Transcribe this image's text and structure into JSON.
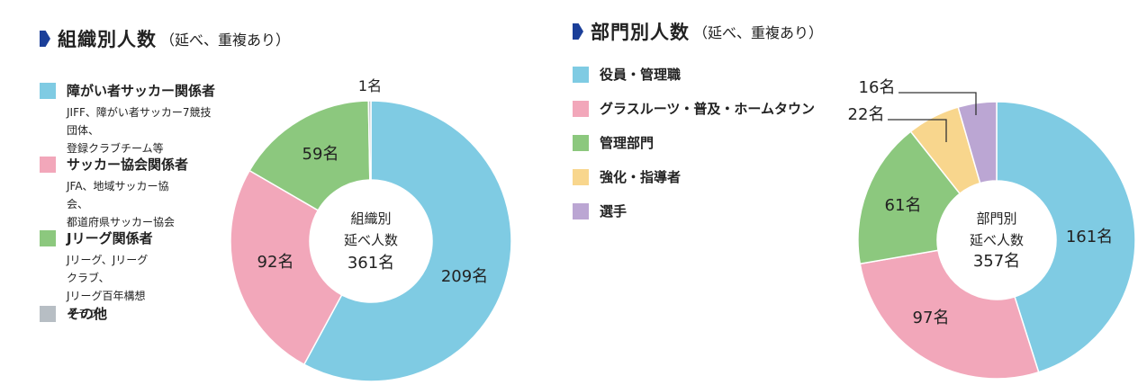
{
  "left": {
    "title": "組織別人数",
    "subtitle": "（延べ、重複あり）",
    "legend": [
      {
        "label": "障がい者サッカー関係者",
        "desc": "JIFF、障がい者サッカー7競技団体、\n登録クラブチーム等",
        "color": "#7fcbe3"
      },
      {
        "label": "サッカー協会関係者",
        "desc": "JFA、地域サッカー協会、\n都道府県サッカー協会",
        "color": "#f2a7ba"
      },
      {
        "label": "Jリーグ関係者",
        "desc": "Jリーグ、Jリーグクラブ、\nJリーグ百年構想クラブ",
        "color": "#8cc87e"
      },
      {
        "label": "その他",
        "desc": "",
        "color": "#b7bec4"
      }
    ]
  },
  "right": {
    "title": "部門別人数",
    "subtitle": "（延べ、重複あり）",
    "legend": [
      {
        "label": "役員・管理職",
        "color": "#7fcbe3"
      },
      {
        "label": "グラスルーツ・普及・ホームタウン",
        "color": "#f2a7ba"
      },
      {
        "label": "管理部門",
        "color": "#8cc87e"
      },
      {
        "label": "強化・指導者",
        "color": "#f8d68d"
      },
      {
        "label": "選手",
        "color": "#bba6d3"
      }
    ]
  },
  "chart_data": [
    {
      "type": "pie",
      "title": "組織別人数",
      "unit": "名",
      "center_text": [
        "組織別",
        "延べ人数",
        "361名"
      ],
      "series": [
        {
          "name": "障がい者サッカー関係者",
          "value": 209,
          "label": "209名",
          "color": "#7fcbe3"
        },
        {
          "name": "サッカー協会関係者",
          "value": 92,
          "label": "92名",
          "color": "#f2a7ba"
        },
        {
          "name": "Jリーグ関係者",
          "value": 59,
          "label": "59名",
          "color": "#8cc87e"
        },
        {
          "name": "その他",
          "value": 1,
          "label": "1名",
          "color": "#b7bec4"
        }
      ]
    },
    {
      "type": "pie",
      "title": "部門別人数",
      "unit": "名",
      "center_text": [
        "部門別",
        "延べ人数",
        "357名"
      ],
      "series": [
        {
          "name": "役員・管理職",
          "value": 161,
          "label": "161名",
          "color": "#7fcbe3"
        },
        {
          "name": "グラスルーツ・普及・ホームタウン",
          "value": 97,
          "label": "97名",
          "color": "#f2a7ba"
        },
        {
          "name": "管理部門",
          "value": 61,
          "label": "61名",
          "color": "#8cc87e"
        },
        {
          "name": "強化・指導者",
          "value": 22,
          "label": "22名",
          "color": "#f8d68d"
        },
        {
          "name": "選手",
          "value": 16,
          "label": "16名",
          "color": "#bba6d3"
        }
      ]
    }
  ]
}
